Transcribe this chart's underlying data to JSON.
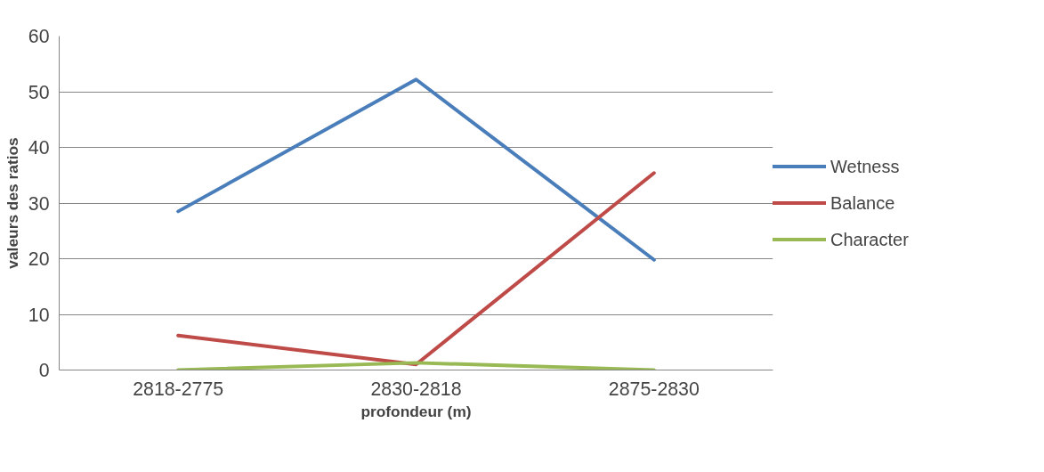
{
  "chart_data": {
    "type": "line",
    "xlabel": "profondeur (m)",
    "ylabel": "valeurs des ratios",
    "categories": [
      "2818-2775",
      "2830-2818",
      "2875-2830"
    ],
    "series": [
      {
        "name": "Wetness",
        "color": "#4a7ebb",
        "values": [
          28.5,
          52.2,
          19.8
        ]
      },
      {
        "name": "Balance",
        "color": "#be4b48",
        "values": [
          6.2,
          1.0,
          35.4
        ]
      },
      {
        "name": "Character",
        "color": "#98b954",
        "values": [
          0,
          1.3,
          0
        ]
      }
    ],
    "ylim": [
      0,
      60
    ],
    "yticks": [
      0,
      10,
      20,
      30,
      40,
      50,
      60
    ],
    "grid": "y",
    "legend": "right",
    "line_style": "solid",
    "marker": "none"
  }
}
